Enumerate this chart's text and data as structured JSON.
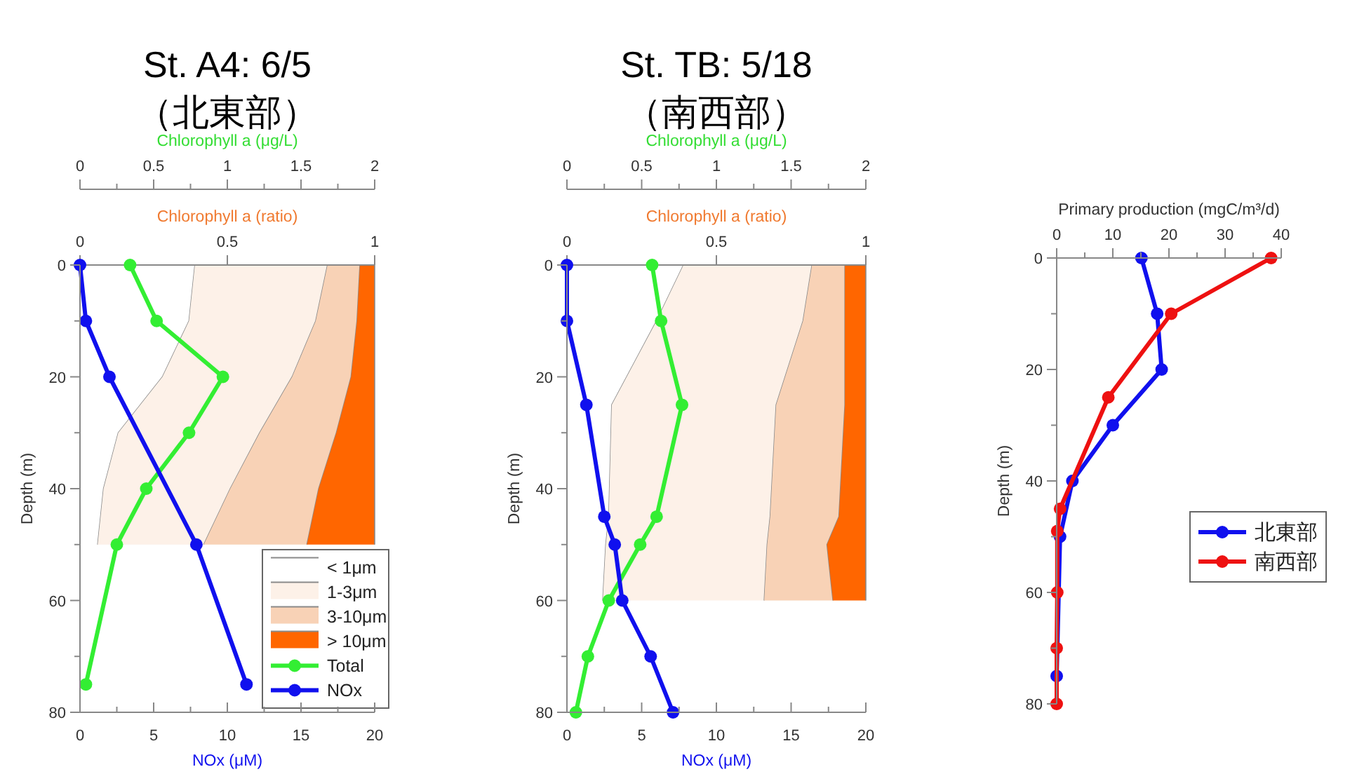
{
  "chart_data": [
    {
      "type": "area",
      "title": "St. A4: 6/5",
      "subtitle": "（北東部）",
      "orientation": "horizontal",
      "stacked": true,
      "legend": "bottom right",
      "tick_labels": "x",
      "xlabel": "Chlorophyll a (ratio)",
      "xlim": [
        0,
        1
      ],
      "xticks": [
        0,
        0.5,
        1
      ],
      "ylim": [
        80,
        0
      ],
      "series": [
        {
          "name": "< 1μm",
          "color": "#ffffff",
          "x": [
            0,
            10,
            20,
            30,
            40,
            50
          ],
          "values": [
            0.39,
            0.37,
            0.28,
            0.13,
            0.08,
            0.06
          ]
        },
        {
          "name": "1-3μm",
          "color": "#fdf1e8",
          "x": [
            0,
            10,
            20,
            30,
            40,
            50
          ],
          "values": [
            0.45,
            0.43,
            0.44,
            0.48,
            0.43,
            0.36
          ]
        },
        {
          "name": "3-10μm",
          "color": "#f8d2b6",
          "x": [
            0,
            10,
            20,
            30,
            40,
            50
          ],
          "values": [
            0.11,
            0.14,
            0.2,
            0.26,
            0.3,
            0.35
          ]
        },
        {
          "name": "> 10μm",
          "color": "#ff6600",
          "x": [
            0,
            10,
            20,
            30,
            40,
            50
          ],
          "values": [
            0.05,
            0.06,
            0.08,
            0.13,
            0.19,
            0.23
          ]
        }
      ]
    },
    {
      "type": "line",
      "orientation": "horizontal",
      "marker": "circle",
      "legend": "bottom right",
      "xlabel": "NOx (μM)",
      "xlim": [
        0,
        20
      ],
      "xticks": [
        0,
        {
          "value": 2.5,
          "label": null
        },
        5,
        {
          "value": 7.5,
          "label": null
        },
        10,
        {
          "value": 12.5,
          "label": null
        },
        15,
        {
          "value": 17.5,
          "label": null
        },
        20
      ],
      "x2label": "Chlorophyll a (μg/L)",
      "x2lim": [
        0,
        2
      ],
      "x2ticks": [
        0,
        {
          "value": 0.25,
          "label": null
        },
        0.5,
        {
          "value": 0.75,
          "label": null
        },
        1,
        {
          "value": 1.25,
          "label": null
        },
        1.5,
        {
          "value": 1.75,
          "label": null
        },
        2
      ],
      "ylabel": "Depth (m)",
      "ylim": [
        80,
        0
      ],
      "yticks": [
        0,
        {
          "value": 10,
          "label": null
        },
        20,
        {
          "value": 30,
          "label": null
        },
        40,
        {
          "value": 50,
          "label": null
        },
        60,
        {
          "value": 70,
          "label": null
        },
        80
      ],
      "series": [
        {
          "name": "Total",
          "axis": "x2",
          "color": "#33ee33",
          "x": [
            0,
            10,
            20,
            30,
            40,
            50,
            75
          ],
          "values": [
            0.34,
            0.52,
            0.97,
            0.74,
            0.45,
            0.25,
            0.04
          ]
        },
        {
          "name": "NOx",
          "color": "#1010ee",
          "x": [
            0,
            10,
            20,
            50,
            75
          ],
          "values": [
            0,
            0.4,
            2,
            7.9,
            11.3
          ]
        }
      ]
    },
    {
      "type": "area",
      "title": "St. TB: 5/18",
      "subtitle": "（南西部）",
      "orientation": "horizontal",
      "stacked": true,
      "tick_labels": "x",
      "xlabel": "Chlorophyll a (ratio)",
      "xlim": [
        0,
        1
      ],
      "xticks": [
        0,
        0.5,
        1
      ],
      "ylim": [
        80,
        0
      ],
      "series": [
        {
          "color": "#ffffff",
          "x": [
            0,
            10,
            25,
            45,
            50,
            60
          ],
          "values": [
            0.39,
            0.3,
            0.15,
            0.14,
            0.13,
            0.12
          ]
        },
        {
          "color": "#fdf1e8",
          "x": [
            0,
            10,
            25,
            45,
            50,
            60
          ],
          "values": [
            0.43,
            0.49,
            0.55,
            0.54,
            0.54,
            0.54
          ]
        },
        {
          "color": "#f8d2b6",
          "x": [
            0,
            10,
            25,
            45,
            50,
            60
          ],
          "values": [
            0.11,
            0.14,
            0.23,
            0.23,
            0.2,
            0.23
          ]
        },
        {
          "color": "#ff6600",
          "x": [
            0,
            10,
            25,
            45,
            50,
            60
          ],
          "values": [
            0.07,
            0.07,
            0.07,
            0.09,
            0.13,
            0.11
          ]
        }
      ]
    },
    {
      "type": "line",
      "orientation": "horizontal",
      "marker": "circle",
      "xlabel": "NOx (μM)",
      "xlim": [
        0,
        20
      ],
      "xticks": [
        0,
        {
          "value": 2.5,
          "label": null
        },
        5,
        {
          "value": 7.5,
          "label": null
        },
        10,
        {
          "value": 12.5,
          "label": null
        },
        15,
        {
          "value": 17.5,
          "label": null
        },
        20
      ],
      "x2label": "Chlorophyll a (μg/L)",
      "x2lim": [
        0,
        2
      ],
      "x2ticks": [
        0,
        {
          "value": 0.25,
          "label": null
        },
        0.5,
        {
          "value": 0.75,
          "label": null
        },
        1,
        {
          "value": 1.25,
          "label": null
        },
        1.5,
        {
          "value": 1.75,
          "label": null
        },
        2
      ],
      "ylabel": "Depth (m)",
      "ylim": [
        80,
        0
      ],
      "yticks": [
        0,
        {
          "value": 10,
          "label": null
        },
        20,
        {
          "value": 30,
          "label": null
        },
        40,
        {
          "value": 50,
          "label": null
        },
        60,
        {
          "value": 70,
          "label": null
        },
        80
      ],
      "series": [
        {
          "axis": "x2",
          "color": "#33ee33",
          "x": [
            0,
            10,
            25,
            45,
            50,
            60,
            70,
            80
          ],
          "values": [
            0.57,
            0.63,
            0.77,
            0.6,
            0.49,
            0.28,
            0.14,
            0.06
          ]
        },
        {
          "color": "#1010ee",
          "x": [
            0,
            10,
            25,
            45,
            50,
            60,
            70,
            80
          ],
          "values": [
            0,
            0,
            1.3,
            2.5,
            3.2,
            3.7,
            5.6,
            7.1
          ]
        }
      ]
    },
    {
      "type": "line",
      "orientation": "horizontal",
      "marker": "circle",
      "legend": "right",
      "xlabel": "Primary production (mgC/m³/d)",
      "xlim": [
        0,
        40
      ],
      "xticks": [
        0,
        {
          "value": 5,
          "label": null
        },
        10,
        {
          "value": 15,
          "label": null
        },
        20,
        {
          "value": 25,
          "label": null
        },
        30,
        {
          "value": 35,
          "label": null
        },
        40
      ],
      "ylabel": "Depth (m)",
      "ylim": [
        80,
        0
      ],
      "yticks": [
        0,
        {
          "value": 10,
          "label": null
        },
        20,
        {
          "value": 30,
          "label": null
        },
        40,
        {
          "value": 50,
          "label": null
        },
        60,
        {
          "value": 70,
          "label": null
        },
        80
      ],
      "series": [
        {
          "name": "北東部",
          "color": "#1010ee",
          "x": [
            0,
            10,
            20,
            30,
            40,
            50,
            75
          ],
          "values": [
            15.1,
            17.9,
            18.7,
            10,
            2.8,
            0.6,
            0
          ]
        },
        {
          "name": "南西部",
          "color": "#ee1111",
          "x": [
            0,
            10,
            25,
            45,
            49,
            60,
            70,
            80
          ],
          "values": [
            38.2,
            20.4,
            9.2,
            0.6,
            0.1,
            0.1,
            0,
            0
          ]
        }
      ]
    }
  ]
}
